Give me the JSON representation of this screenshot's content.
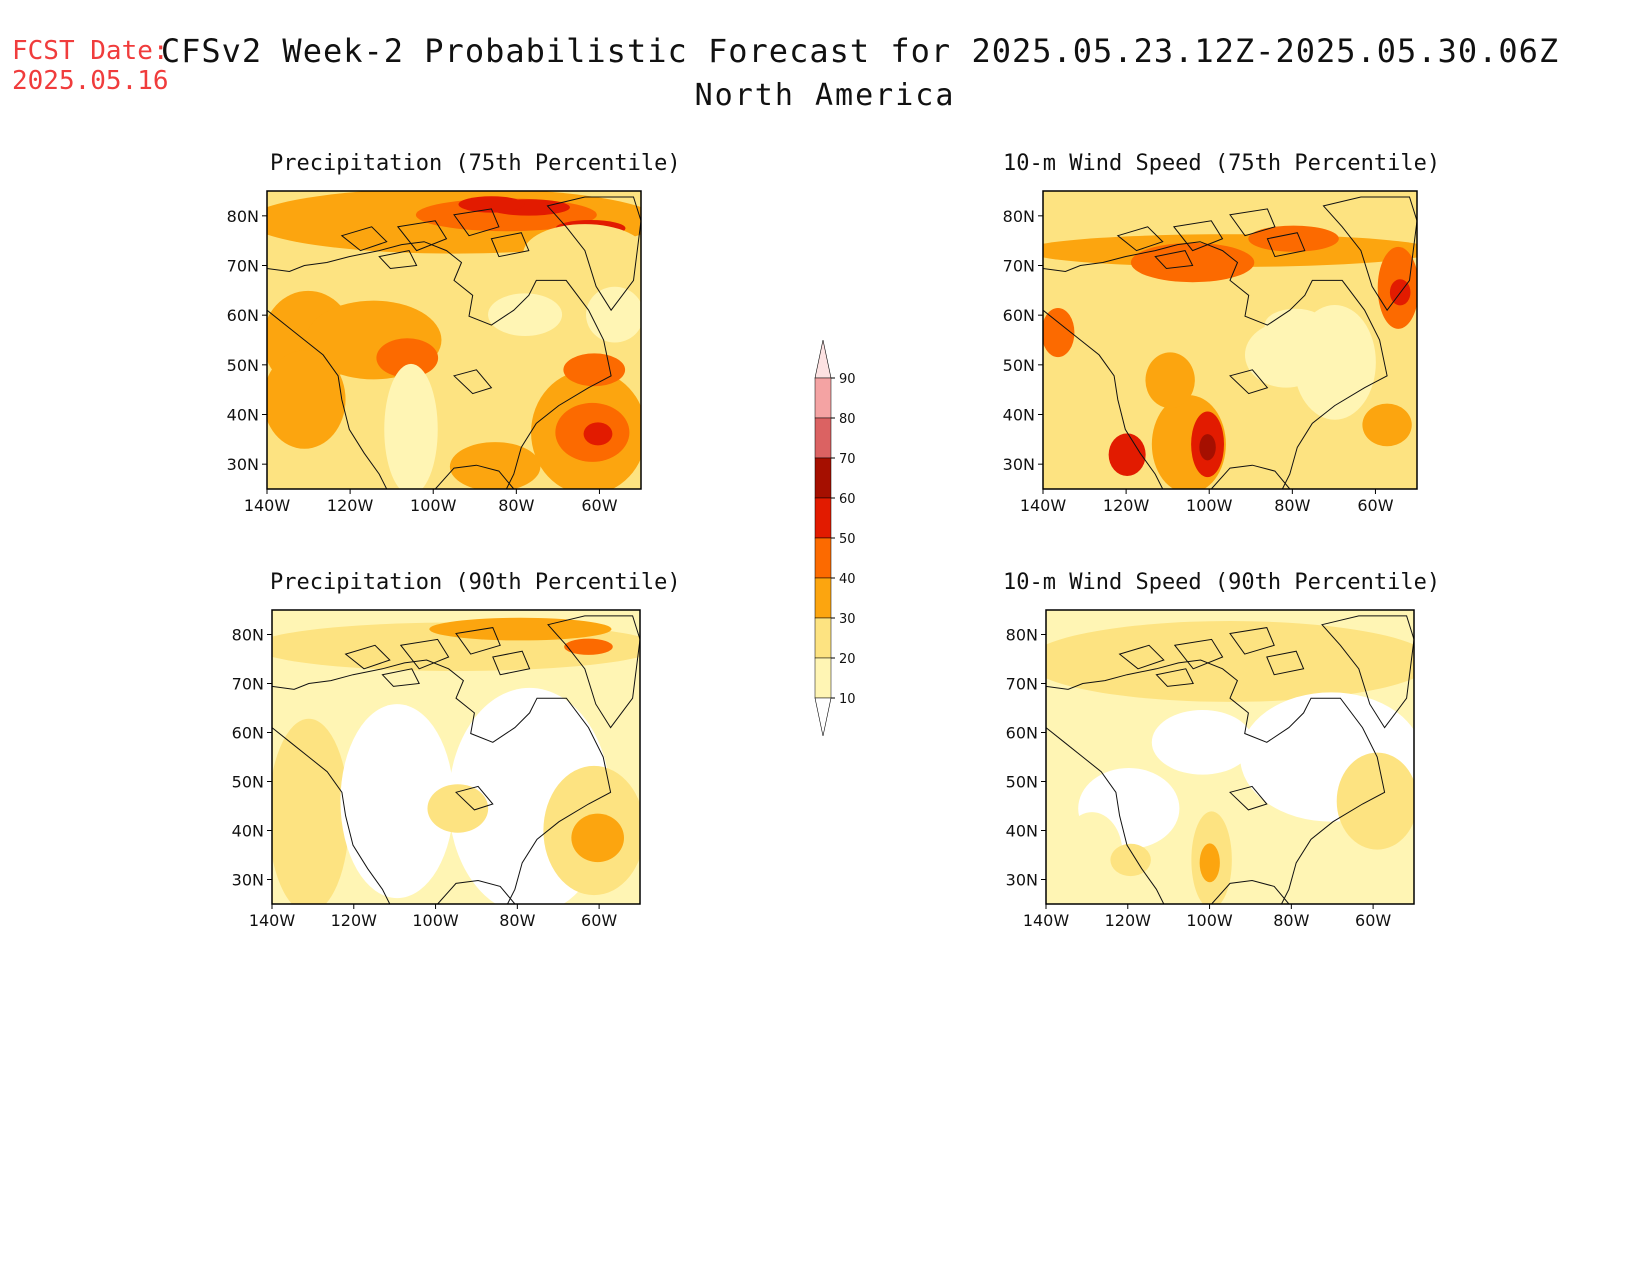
{
  "header": {
    "fcst_label": "FCST Date:",
    "fcst_date": "2025.05.16",
    "title": "CFSv2 Week-2 Probabilistic Forecast for 2025.05.23.12Z-2025.05.30.06Z",
    "subtitle": "North America"
  },
  "axes": {
    "lon_labels": [
      "140W",
      "120W",
      "100W",
      "80W",
      "60W"
    ],
    "lat_labels": [
      "80N",
      "70N",
      "60N",
      "50N",
      "40N",
      "30N"
    ],
    "lon_range": [
      -140,
      -50
    ],
    "lat_range": [
      25,
      85
    ]
  },
  "panels": [
    {
      "id": "precip75",
      "title": "Precipitation (75th Percentile)"
    },
    {
      "id": "wind75",
      "title": "10-m Wind Speed (75th Percentile)"
    },
    {
      "id": "precip90",
      "title": "Precipitation (90th Percentile)"
    },
    {
      "id": "wind90",
      "title": "10-m Wind Speed (90th Percentile)"
    }
  ],
  "colorbar": {
    "levels": [
      "10",
      "20",
      "30",
      "40",
      "50",
      "60",
      "70",
      "80",
      "90"
    ],
    "colors": [
      "#fff5b4",
      "#fde381",
      "#fca50f",
      "#fc6a00",
      "#e21b00",
      "#a50f00",
      "#db6262",
      "#f4a3a3",
      "#fde2e2"
    ]
  }
}
